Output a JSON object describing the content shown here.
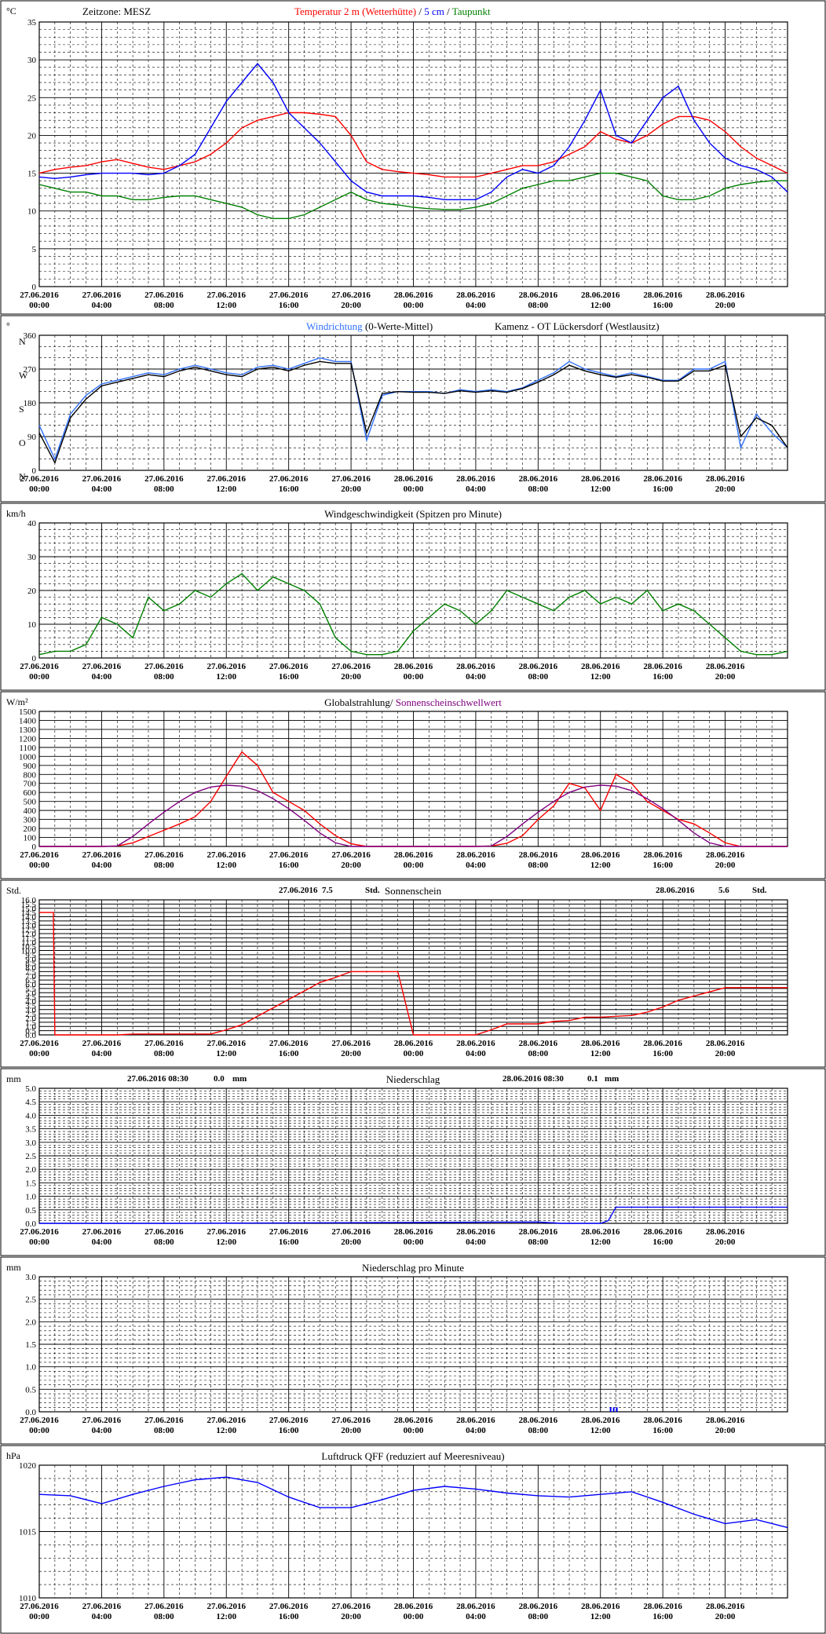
{
  "station": "Kamenz - OT Lückersdorf (Westlausitz)",
  "timezone_label": "Zeitzone: MESZ",
  "x_ticks": [
    {
      "date": "27.06.2016",
      "time": "00:00"
    },
    {
      "date": "27.06.2016",
      "time": "04:00"
    },
    {
      "date": "27.06.2016",
      "time": "08:00"
    },
    {
      "date": "27.06.2016",
      "time": "12:00"
    },
    {
      "date": "27.06.2016",
      "time": "16:00"
    },
    {
      "date": "27.06.2016",
      "time": "20:00"
    },
    {
      "date": "28.06.2016",
      "time": "00:00"
    },
    {
      "date": "28.06.2016",
      "time": "04:00"
    },
    {
      "date": "28.06.2016",
      "time": "08:00"
    },
    {
      "date": "28.06.2016",
      "time": "12:00"
    },
    {
      "date": "28.06.2016",
      "time": "16:00"
    },
    {
      "date": "28.06.2016",
      "time": "20:00"
    }
  ],
  "colors": {
    "red": "#ff0000",
    "blue": "#0000ff",
    "lightblue": "#3070ff",
    "green": "#008000",
    "purple": "#800080",
    "black": "#000000"
  },
  "chart_data": [
    {
      "id": "temperature",
      "type": "line",
      "unit": "°C",
      "ylim": [
        0,
        35
      ],
      "yticks": [
        0,
        5,
        10,
        15,
        20,
        25,
        30,
        35
      ],
      "title_parts": [
        {
          "text": "Temperatur 2 m (Wetterhütte)",
          "color": "#ff0000"
        },
        {
          "text": " / ",
          "color": "#000000"
        },
        {
          "text": "5 cm",
          "color": "#0000ff"
        },
        {
          "text": " / ",
          "color": "#000000"
        },
        {
          "text": "Taupunkt",
          "color": "#008000"
        }
      ],
      "x_hours": [
        0,
        1,
        2,
        3,
        4,
        5,
        6,
        7,
        8,
        9,
        10,
        11,
        12,
        13,
        14,
        15,
        16,
        17,
        18,
        19,
        20,
        21,
        22,
        23,
        24,
        25,
        26,
        27,
        28,
        29,
        30,
        31,
        32,
        33,
        34,
        35,
        36,
        37,
        38,
        39,
        40,
        41,
        42,
        43,
        44,
        45,
        46,
        47,
        48
      ],
      "series": [
        {
          "name": "Temperatur 2 m (Wetterhütte)",
          "color": "#ff0000",
          "values": [
            15.0,
            15.5,
            15.8,
            16.0,
            16.5,
            16.8,
            16.3,
            15.8,
            15.5,
            16.0,
            16.5,
            17.5,
            19.0,
            21.0,
            22.0,
            22.5,
            23.0,
            23.0,
            22.8,
            22.5,
            20.0,
            16.5,
            15.5,
            15.2,
            15.0,
            14.8,
            14.5,
            14.5,
            14.5,
            15.0,
            15.5,
            16.0,
            16.0,
            16.5,
            17.5,
            18.5,
            20.5,
            19.5,
            19.0,
            20.0,
            21.5,
            22.5,
            22.5,
            22.0,
            20.5,
            18.5,
            17.0,
            16.0,
            15.0
          ]
        },
        {
          "name": "5 cm",
          "color": "#0000ff",
          "values": [
            14.5,
            14.3,
            14.5,
            14.8,
            15.0,
            15.0,
            15.0,
            14.8,
            15.0,
            16.0,
            17.5,
            21.0,
            24.5,
            27.0,
            29.5,
            27.0,
            23.0,
            21.0,
            19.0,
            16.5,
            14.0,
            12.5,
            12.0,
            12.0,
            12.0,
            11.8,
            11.5,
            11.5,
            11.5,
            12.5,
            14.5,
            15.5,
            15.0,
            16.0,
            18.5,
            22.0,
            26.0,
            20.0,
            19.0,
            22.0,
            25.0,
            26.5,
            22.0,
            19.0,
            17.0,
            16.0,
            15.5,
            14.5,
            12.5
          ]
        },
        {
          "name": "Taupunkt",
          "color": "#008000",
          "values": [
            13.5,
            13.0,
            12.5,
            12.5,
            12.0,
            12.0,
            11.5,
            11.5,
            11.8,
            12.0,
            12.0,
            11.5,
            11.0,
            10.5,
            9.5,
            9.0,
            9.0,
            9.5,
            10.5,
            11.5,
            12.5,
            11.5,
            11.0,
            10.8,
            10.5,
            10.3,
            10.2,
            10.2,
            10.5,
            11.0,
            12.0,
            13.0,
            13.5,
            14.0,
            14.0,
            14.5,
            15.0,
            15.0,
            14.5,
            14.0,
            12.0,
            11.5,
            11.5,
            12.0,
            13.0,
            13.5,
            13.8,
            14.0,
            14.0
          ]
        }
      ]
    },
    {
      "id": "wind_direction",
      "type": "line",
      "unit": "°",
      "ylim": [
        0,
        360
      ],
      "yticks": [
        0,
        90,
        180,
        270,
        360
      ],
      "direction_labels": [
        "N",
        "O",
        "S",
        "W",
        "N"
      ],
      "title_parts": [
        {
          "text": "Windrichtung",
          "color": "#3070ff"
        },
        {
          "text": " (0-Werte-Mittel)",
          "color": "#000000"
        }
      ],
      "x_hours": [
        0,
        1,
        2,
        3,
        4,
        5,
        6,
        7,
        8,
        9,
        10,
        11,
        12,
        13,
        14,
        15,
        16,
        17,
        18,
        19,
        20,
        21,
        22,
        23,
        24,
        25,
        26,
        27,
        28,
        29,
        30,
        31,
        32,
        33,
        34,
        35,
        36,
        37,
        38,
        39,
        40,
        41,
        42,
        43,
        44,
        45,
        46,
        47,
        48
      ],
      "series": [
        {
          "name": "Windrichtung",
          "color": "#3070ff",
          "values": [
            120,
            30,
            150,
            200,
            230,
            240,
            250,
            260,
            255,
            270,
            280,
            270,
            260,
            255,
            275,
            280,
            270,
            285,
            300,
            290,
            290,
            80,
            200,
            210,
            210,
            210,
            205,
            215,
            210,
            215,
            210,
            220,
            240,
            260,
            290,
            270,
            260,
            250,
            260,
            250,
            240,
            240,
            270,
            270,
            290,
            60,
            150,
            100,
            60
          ]
        },
        {
          "name": "0-Werte-Mittel",
          "color": "#000000",
          "values": [
            100,
            20,
            140,
            190,
            225,
            235,
            245,
            255,
            250,
            265,
            275,
            265,
            255,
            250,
            270,
            275,
            265,
            280,
            290,
            285,
            285,
            100,
            205,
            210,
            208,
            208,
            205,
            212,
            208,
            212,
            208,
            218,
            235,
            255,
            280,
            265,
            255,
            248,
            255,
            248,
            238,
            238,
            265,
            265,
            280,
            90,
            140,
            120,
            60
          ]
        }
      ]
    },
    {
      "id": "wind_speed",
      "type": "line",
      "unit": "km/h",
      "ylim": [
        0,
        40
      ],
      "yticks": [
        0,
        10,
        20,
        30,
        40
      ],
      "title_parts": [
        {
          "text": "Windgeschwindigkeit (Spitzen pro Minute)",
          "color": "#000000"
        }
      ],
      "x_hours": [
        0,
        1,
        2,
        3,
        4,
        5,
        6,
        7,
        8,
        9,
        10,
        11,
        12,
        13,
        14,
        15,
        16,
        17,
        18,
        19,
        20,
        21,
        22,
        23,
        24,
        25,
        26,
        27,
        28,
        29,
        30,
        31,
        32,
        33,
        34,
        35,
        36,
        37,
        38,
        39,
        40,
        41,
        42,
        43,
        44,
        45,
        46,
        47,
        48
      ],
      "series": [
        {
          "name": "Windgeschwindigkeit",
          "color": "#008000",
          "values": [
            1,
            2,
            2,
            4,
            12,
            10,
            6,
            18,
            14,
            16,
            20,
            18,
            22,
            25,
            20,
            24,
            22,
            20,
            16,
            6,
            2,
            1,
            1,
            2,
            8,
            12,
            16,
            14,
            10,
            14,
            20,
            18,
            16,
            14,
            18,
            20,
            16,
            18,
            16,
            20,
            14,
            16,
            14,
            10,
            6,
            2,
            1,
            1,
            2
          ]
        }
      ]
    },
    {
      "id": "radiation",
      "type": "line",
      "unit": "W/m²",
      "ylim": [
        0,
        1500
      ],
      "yticks": [
        0,
        100,
        200,
        300,
        400,
        500,
        600,
        700,
        800,
        900,
        1000,
        1100,
        1200,
        1300,
        1400,
        1500
      ],
      "title_parts": [
        {
          "text": "Globalstrahlung",
          "color": "#000000"
        },
        {
          "text": "/ ",
          "color": "#000000"
        },
        {
          "text": "Sonnenscheinschwellwert",
          "color": "#800080"
        }
      ],
      "x_hours": [
        0,
        1,
        2,
        3,
        4,
        5,
        6,
        7,
        8,
        9,
        10,
        11,
        12,
        13,
        14,
        15,
        16,
        17,
        18,
        19,
        20,
        21,
        22,
        23,
        24,
        25,
        26,
        27,
        28,
        29,
        30,
        31,
        32,
        33,
        34,
        35,
        36,
        37,
        38,
        39,
        40,
        41,
        42,
        43,
        44,
        45,
        46,
        47,
        48
      ],
      "series": [
        {
          "name": "Globalstrahlung",
          "color": "#ff0000",
          "values": [
            0,
            0,
            0,
            0,
            0,
            5,
            40,
            110,
            180,
            250,
            330,
            500,
            780,
            1050,
            900,
            600,
            500,
            400,
            250,
            120,
            30,
            0,
            0,
            0,
            0,
            0,
            0,
            0,
            0,
            5,
            35,
            120,
            300,
            450,
            700,
            650,
            400,
            800,
            700,
            500,
            400,
            300,
            250,
            150,
            40,
            0,
            0,
            0,
            0
          ]
        },
        {
          "name": "Sonnenscheinschwellwert",
          "color": "#800080",
          "values": [
            0,
            0,
            0,
            0,
            0,
            5,
            110,
            250,
            380,
            500,
            600,
            660,
            680,
            670,
            620,
            530,
            420,
            290,
            150,
            40,
            0,
            0,
            0,
            0,
            0,
            0,
            0,
            0,
            0,
            5,
            110,
            250,
            380,
            500,
            600,
            660,
            680,
            670,
            620,
            530,
            420,
            290,
            150,
            40,
            0,
            0,
            0,
            0,
            0
          ]
        }
      ]
    },
    {
      "id": "sunshine",
      "type": "line",
      "unit": "Std.",
      "ylim": [
        0,
        16
      ],
      "yticks": [
        0,
        0.5,
        1,
        1.5,
        2,
        2.5,
        3,
        3.5,
        4,
        4.5,
        5,
        5.5,
        6,
        6.5,
        7,
        7.5,
        8,
        8.5,
        9,
        9.5,
        10,
        10.5,
        11,
        11.5,
        12,
        12.5,
        13,
        13.5,
        14,
        14.5,
        15,
        15.5,
        16
      ],
      "title_parts": [
        {
          "text": "Sonnenschein",
          "color": "#000000"
        }
      ],
      "annotations": [
        {
          "date": "27.06.2016",
          "value": "7.5",
          "unit": "Std."
        },
        {
          "date": "28.06.2016",
          "value": "5.6",
          "unit": "Std."
        }
      ],
      "x_hours": [
        0,
        0.9,
        1,
        2,
        3,
        4,
        5,
        6,
        7,
        8,
        9,
        10,
        11,
        12,
        13,
        14,
        15,
        16,
        17,
        18,
        19,
        20,
        21,
        22,
        23,
        24,
        25,
        26,
        27,
        28,
        29,
        30,
        31,
        32,
        33,
        34,
        35,
        36,
        37,
        38,
        39,
        40,
        41,
        42,
        43,
        44,
        45,
        46,
        47,
        48
      ],
      "series": [
        {
          "name": "Sonnenschein",
          "color": "#ff0000",
          "values": [
            14.5,
            14.5,
            0,
            0,
            0,
            0,
            0,
            0.1,
            0.1,
            0.1,
            0.1,
            0.1,
            0.1,
            0.6,
            1.2,
            2.2,
            3.2,
            4.2,
            5.2,
            6.2,
            6.8,
            7.5,
            7.5,
            7.5,
            7.5,
            0,
            0,
            0,
            0,
            0,
            0.6,
            1.3,
            1.3,
            1.3,
            1.6,
            1.7,
            2.1,
            2.1,
            2.2,
            2.3,
            2.7,
            3.3,
            4.1,
            4.6,
            5.1,
            5.6,
            5.6,
            5.6,
            5.6,
            5.6
          ]
        }
      ]
    },
    {
      "id": "precipitation",
      "type": "line",
      "unit": "mm",
      "ylim": [
        0,
        5
      ],
      "yticks": [
        0,
        0.5,
        1,
        1.5,
        2,
        2.5,
        3,
        3.5,
        4,
        4.5,
        5
      ],
      "title_parts": [
        {
          "text": "Niederschlag",
          "color": "#000000"
        }
      ],
      "annotations": [
        {
          "date": "27.06.2016 08:30",
          "value": "0.0",
          "unit": "mm"
        },
        {
          "date": "28.06.2016 08:30",
          "value": "0.1",
          "unit": "mm"
        }
      ],
      "x_hours": [
        0,
        8.5,
        32,
        33.5,
        36,
        36.5,
        37,
        48
      ],
      "series": [
        {
          "name": "Niederschlag",
          "color": "#0000ff",
          "values": [
            0,
            0,
            0.05,
            0,
            0,
            0.1,
            0.6,
            0.6
          ]
        }
      ]
    },
    {
      "id": "precip_minute",
      "type": "bar",
      "unit": "mm",
      "ylim": [
        0,
        3
      ],
      "yticks": [
        0,
        0.5,
        1,
        1.5,
        2,
        2.5,
        3
      ],
      "title_parts": [
        {
          "text": "Niederschlag pro Minute",
          "color": "#000000"
        }
      ],
      "x_hours": [
        36.6,
        36.8,
        37.0
      ],
      "series": [
        {
          "name": "Niederschlag pro Minute",
          "color": "#0000ff",
          "values": [
            0.1,
            0.1,
            0.1
          ]
        }
      ]
    },
    {
      "id": "pressure",
      "type": "line",
      "unit": "hPa",
      "ylim": [
        1010,
        1020
      ],
      "yticks": [
        1010,
        1015,
        1020
      ],
      "title_parts": [
        {
          "text": "Luftdruck QFF (reduziert auf Meeresniveau)",
          "color": "#000000"
        }
      ],
      "x_hours": [
        0,
        2,
        4,
        6,
        8,
        10,
        12,
        14,
        16,
        18,
        20,
        22,
        24,
        26,
        28,
        30,
        32,
        34,
        36,
        38,
        40,
        42,
        44,
        46,
        48
      ],
      "series": [
        {
          "name": "Luftdruck QFF",
          "color": "#0000ff",
          "values": [
            1017.8,
            1017.7,
            1017.1,
            1017.8,
            1018.4,
            1018.9,
            1019.1,
            1018.7,
            1017.6,
            1016.8,
            1016.8,
            1017.4,
            1018.1,
            1018.4,
            1018.2,
            1017.9,
            1017.7,
            1017.6,
            1017.8,
            1018.0,
            1017.2,
            1016.3,
            1015.6,
            1015.9,
            1015.3
          ]
        }
      ]
    }
  ]
}
